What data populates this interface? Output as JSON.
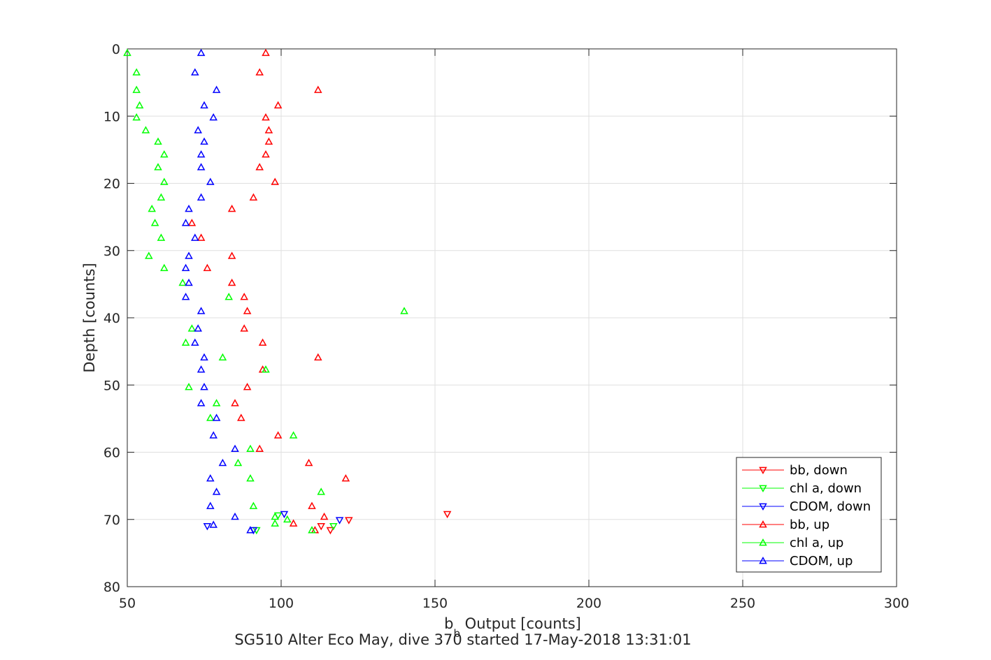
{
  "chart_data": {
    "type": "scatter",
    "title": "",
    "xlabel_base": "b",
    "xlabel_sub": "b",
    "xlabel_rest": " Output [counts]",
    "caption": "SG510 Alter Eco May, dive 370 started 17-May-2018 13:31:01",
    "ylabel": "Depth [counts]",
    "xlim": [
      50,
      300
    ],
    "ylim": [
      0,
      80
    ],
    "y_reversed": true,
    "xticks": [
      50,
      100,
      150,
      200,
      250,
      300
    ],
    "yticks": [
      0,
      10,
      20,
      30,
      40,
      50,
      60,
      70,
      80
    ],
    "grid": true,
    "legend_position": "bottom-right",
    "series": [
      {
        "name": "bb, down",
        "color": "#ff0000",
        "marker": "triangle-down",
        "points": [
          [
            154,
            69.2
          ],
          [
            122,
            70.1
          ],
          [
            113,
            71.0
          ],
          [
            116,
            71.6
          ]
        ]
      },
      {
        "name": "chl a, down",
        "color": "#00ff00",
        "marker": "triangle-down",
        "points": [
          [
            99,
            69.4
          ],
          [
            117,
            71.0
          ],
          [
            92,
            71.6
          ]
        ]
      },
      {
        "name": "CDOM, down",
        "color": "#0000ff",
        "marker": "triangle-down",
        "points": [
          [
            101,
            69.2
          ],
          [
            119,
            70.1
          ],
          [
            76,
            71.0
          ],
          [
            91,
            71.6
          ]
        ]
      },
      {
        "name": "bb, up",
        "color": "#ff0000",
        "marker": "triangle-up",
        "points": [
          [
            95,
            0.6
          ],
          [
            93,
            3.5
          ],
          [
            112,
            6.1
          ],
          [
            99,
            8.4
          ],
          [
            95,
            10.2
          ],
          [
            96,
            12.1
          ],
          [
            96,
            13.8
          ],
          [
            95,
            15.7
          ],
          [
            93,
            17.6
          ],
          [
            98,
            19.8
          ],
          [
            91,
            22.1
          ],
          [
            84,
            23.8
          ],
          [
            71,
            25.9
          ],
          [
            74,
            28.1
          ],
          [
            84,
            30.8
          ],
          [
            76,
            32.6
          ],
          [
            84,
            34.8
          ],
          [
            88,
            36.9
          ],
          [
            89,
            39.0
          ],
          [
            88,
            41.6
          ],
          [
            94,
            43.7
          ],
          [
            112,
            45.9
          ],
          [
            94,
            47.7
          ],
          [
            89,
            50.3
          ],
          [
            85,
            52.7
          ],
          [
            87,
            54.9
          ],
          [
            99,
            57.5
          ],
          [
            93,
            59.5
          ],
          [
            109,
            61.6
          ],
          [
            121,
            63.9
          ],
          [
            110,
            68.0
          ],
          [
            114,
            69.6
          ],
          [
            104,
            70.6
          ],
          [
            111,
            71.6
          ]
        ]
      },
      {
        "name": "chl a, up",
        "color": "#00ff00",
        "marker": "triangle-up",
        "points": [
          [
            50,
            0.6
          ],
          [
            53,
            3.5
          ],
          [
            53,
            6.1
          ],
          [
            54,
            8.4
          ],
          [
            53,
            10.2
          ],
          [
            56,
            12.1
          ],
          [
            60,
            13.8
          ],
          [
            62,
            15.7
          ],
          [
            60,
            17.6
          ],
          [
            62,
            19.8
          ],
          [
            61,
            22.1
          ],
          [
            58,
            23.8
          ],
          [
            59,
            25.9
          ],
          [
            61,
            28.1
          ],
          [
            57,
            30.8
          ],
          [
            62,
            32.6
          ],
          [
            68,
            34.8
          ],
          [
            83,
            36.9
          ],
          [
            140,
            39.0
          ],
          [
            71,
            41.6
          ],
          [
            69,
            43.7
          ],
          [
            81,
            45.9
          ],
          [
            95,
            47.7
          ],
          [
            70,
            50.3
          ],
          [
            79,
            52.7
          ],
          [
            77,
            54.9
          ],
          [
            104,
            57.5
          ],
          [
            90,
            59.5
          ],
          [
            86,
            61.6
          ],
          [
            90,
            63.9
          ],
          [
            113,
            65.9
          ],
          [
            91,
            68.0
          ],
          [
            98,
            69.6
          ],
          [
            102,
            70.0
          ],
          [
            98,
            70.6
          ],
          [
            110,
            71.6
          ]
        ]
      },
      {
        "name": "CDOM, up",
        "color": "#0000ff",
        "marker": "triangle-up",
        "points": [
          [
            74,
            0.6
          ],
          [
            72,
            3.5
          ],
          [
            79,
            6.1
          ],
          [
            75,
            8.4
          ],
          [
            78,
            10.2
          ],
          [
            73,
            12.1
          ],
          [
            75,
            13.8
          ],
          [
            74,
            15.7
          ],
          [
            74,
            17.6
          ],
          [
            77,
            19.8
          ],
          [
            74,
            22.1
          ],
          [
            70,
            23.8
          ],
          [
            69,
            25.9
          ],
          [
            72,
            28.1
          ],
          [
            70,
            30.8
          ],
          [
            69,
            32.6
          ],
          [
            70,
            34.8
          ],
          [
            69,
            36.9
          ],
          [
            74,
            39.0
          ],
          [
            73,
            41.6
          ],
          [
            72,
            43.7
          ],
          [
            75,
            45.9
          ],
          [
            74,
            47.7
          ],
          [
            75,
            50.3
          ],
          [
            74,
            52.7
          ],
          [
            79,
            54.9
          ],
          [
            78,
            57.5
          ],
          [
            85,
            59.5
          ],
          [
            81,
            61.6
          ],
          [
            77,
            63.9
          ],
          [
            79,
            65.9
          ],
          [
            77,
            68.0
          ],
          [
            85,
            69.6
          ],
          [
            78,
            70.8
          ],
          [
            90,
            71.6
          ]
        ]
      }
    ]
  }
}
